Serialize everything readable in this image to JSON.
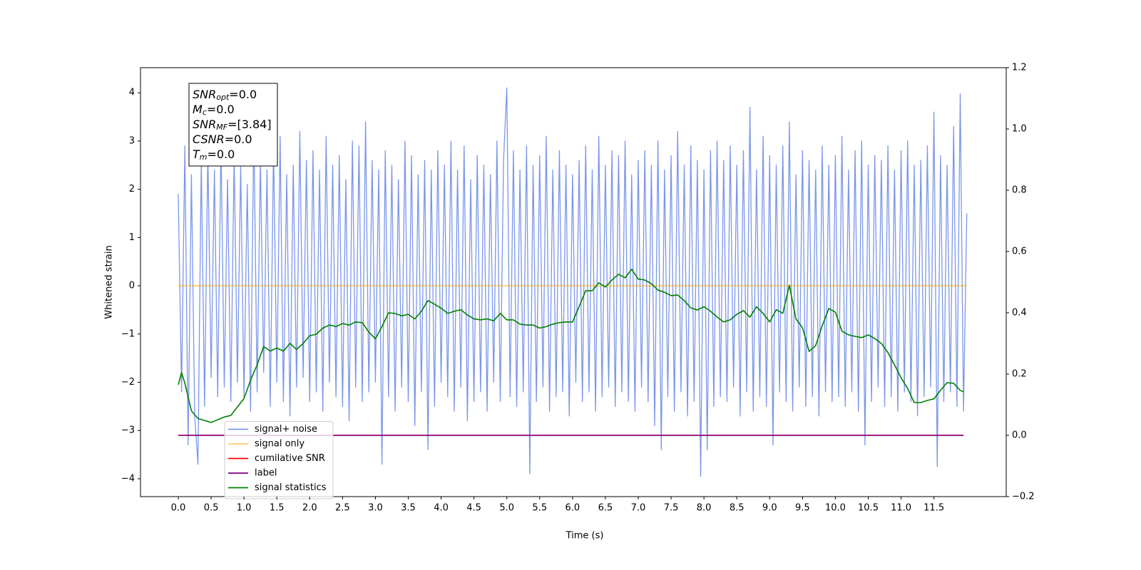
{
  "chart_data": {
    "type": "line",
    "xlabel": "Time (s)",
    "ylabel": "Whitened strain",
    "xlim": [
      -0.575,
      12.6
    ],
    "ylim": [
      -4.37,
      4.52
    ],
    "y2lim": [
      -0.2,
      1.2
    ],
    "xticks": [
      {
        "value": 0,
        "label": "0.0"
      },
      0.5,
      {
        "value": 1,
        "label": "1.0"
      },
      1.5,
      {
        "value": 2,
        "label": "2.0"
      },
      2.5,
      {
        "value": 3,
        "label": "3.0"
      },
      3.5,
      {
        "value": 4,
        "label": "4.0"
      },
      4.5,
      {
        "value": 5,
        "label": "5.0"
      },
      5.5,
      {
        "value": 6,
        "label": "6.0"
      },
      6.5,
      {
        "value": 7,
        "label": "7.0"
      },
      7.5,
      {
        "value": 8,
        "label": "8.0"
      },
      8.5,
      {
        "value": 9,
        "label": "9.0"
      },
      9.5,
      {
        "value": 10,
        "label": "10.0"
      },
      10.5,
      {
        "value": 11,
        "label": "11.0"
      },
      11.5
    ],
    "yticks": [
      {
        "value": -4,
        "label": "−4"
      },
      {
        "value": -3,
        "label": "−3"
      },
      {
        "value": -2,
        "label": "−2"
      },
      {
        "value": -1,
        "label": "−1"
      },
      0,
      1,
      2,
      3,
      4
    ],
    "y2ticks": [
      {
        "value": -0.2,
        "label": "−0.2"
      },
      {
        "value": 0,
        "label": "0.0"
      },
      0.2,
      0.4,
      0.6,
      0.8,
      {
        "value": 1,
        "label": "1.0"
      },
      1.2
    ],
    "legend": "lower left",
    "annotation": [
      {
        "symbol": "SNR",
        "subscript": "opt",
        "text": "=0.0"
      },
      {
        "symbol": "M",
        "subscript": "c",
        "text": "=0.0"
      },
      {
        "symbol": "SNR",
        "subscript": "MF",
        "text": "=[3.84]"
      },
      {
        "symbol": "CSNR",
        "text": "=0.0"
      },
      {
        "symbol": "T",
        "subscript": "m",
        "text": "=0.0"
      }
    ],
    "series": [
      {
        "name": "signal+ noise",
        "color": "rgba(65,105,225,0.7)",
        "x": [
          0,
          0.05,
          0.1,
          0.15,
          0.2,
          0.25,
          0.3,
          0.35,
          0.4,
          0.45,
          0.5,
          0.55,
          0.6,
          0.65,
          0.7,
          0.75,
          0.8,
          0.85,
          0.9,
          0.95,
          1,
          1.05,
          1.1,
          1.15,
          1.2,
          1.25,
          1.3,
          1.35,
          1.4,
          1.45,
          1.5,
          1.55,
          1.6,
          1.65,
          1.7,
          1.75,
          1.8,
          1.85,
          1.9,
          1.95,
          2,
          2.05,
          2.1,
          2.15,
          2.2,
          2.25,
          2.3,
          2.35,
          2.4,
          2.45,
          2.5,
          2.55,
          2.6,
          2.65,
          2.7,
          2.75,
          2.8,
          2.85,
          2.9,
          2.95,
          3,
          3.05,
          3.1,
          3.15,
          3.2,
          3.25,
          3.3,
          3.35,
          3.4,
          3.45,
          3.5,
          3.55,
          3.6,
          3.65,
          3.7,
          3.75,
          3.8,
          3.85,
          3.9,
          3.95,
          4,
          4.05,
          4.1,
          4.15,
          4.2,
          4.25,
          4.3,
          4.35,
          4.4,
          4.45,
          4.5,
          4.55,
          4.6,
          4.65,
          4.7,
          4.75,
          4.8,
          4.85,
          4.9,
          4.95,
          5,
          5.05,
          5.1,
          5.15,
          5.2,
          5.25,
          5.3,
          5.35,
          5.4,
          5.45,
          5.5,
          5.55,
          5.6,
          5.65,
          5.7,
          5.75,
          5.8,
          5.85,
          5.9,
          5.95,
          6,
          6.05,
          6.1,
          6.15,
          6.2,
          6.25,
          6.3,
          6.35,
          6.4,
          6.45,
          6.5,
          6.55,
          6.6,
          6.65,
          6.7,
          6.75,
          6.8,
          6.85,
          6.9,
          6.95,
          7,
          7.05,
          7.1,
          7.15,
          7.2,
          7.25,
          7.3,
          7.35,
          7.4,
          7.45,
          7.5,
          7.55,
          7.6,
          7.65,
          7.7,
          7.75,
          7.8,
          7.85,
          7.9,
          7.95,
          8,
          8.05,
          8.1,
          8.15,
          8.2,
          8.25,
          8.3,
          8.35,
          8.4,
          8.45,
          8.5,
          8.55,
          8.6,
          8.65,
          8.7,
          8.75,
          8.8,
          8.85,
          8.9,
          8.95,
          9,
          9.05,
          9.1,
          9.15,
          9.2,
          9.25,
          9.3,
          9.35,
          9.4,
          9.45,
          9.5,
          9.55,
          9.6,
          9.65,
          9.7,
          9.75,
          9.8,
          9.85,
          9.9,
          9.95,
          10,
          10.05,
          10.1,
          10.15,
          10.2,
          10.25,
          10.3,
          10.35,
          10.4,
          10.45,
          10.5,
          10.55,
          10.6,
          10.65,
          10.7,
          10.75,
          10.8,
          10.85,
          10.9,
          10.95,
          11,
          11.05,
          11.1,
          11.15,
          11.2,
          11.25,
          11.3,
          11.35,
          11.4,
          11.45,
          11.5,
          11.55,
          11.6,
          11.65,
          11.7,
          11.75,
          11.8,
          11.85,
          11.9,
          11.95,
          12
        ],
        "values": [
          1.9,
          -2.2,
          2.9,
          -3.3,
          2.3,
          -2.7,
          -3.7,
          2.6,
          -2.5,
          2.8,
          -1.9,
          2.4,
          -2.3,
          3.0,
          -2.1,
          2.2,
          -2.4,
          2.7,
          -2.0,
          2.5,
          -2.3,
          2.1,
          -2.6,
          3.3,
          -2.2,
          2.6,
          -1.8,
          2.4,
          -2.5,
          2.9,
          -2.0,
          3.1,
          -2.4,
          2.3,
          -2.7,
          2.5,
          -2.1,
          3.2,
          -1.9,
          2.6,
          -2.4,
          2.8,
          -2.2,
          2.4,
          -2.6,
          3.1,
          -2.0,
          2.5,
          -2.3,
          2.7,
          -2.5,
          2.2,
          -2.8,
          3.0,
          -2.1,
          2.9,
          -2.4,
          3.4,
          -2.2,
          2.6,
          -2.0,
          2.4,
          -3.7,
          2.8,
          -2.3,
          2.5,
          -2.6,
          2.2,
          -2.1,
          3.0,
          -2.4,
          2.7,
          -2.9,
          2.3,
          -2.2,
          2.6,
          -3.4,
          2.4,
          -2.5,
          2.8,
          -2.0,
          2.5,
          -2.3,
          3.0,
          -2.6,
          2.4,
          -2.1,
          2.9,
          -2.8,
          2.2,
          -2.4,
          2.7,
          -2.2,
          2.5,
          -2.6,
          2.3,
          -2.0,
          3.0,
          -2.4,
          2.6,
          4.1,
          -2.3,
          2.8,
          -2.5,
          2.4,
          -2.2,
          2.9,
          -3.9,
          2.5,
          -2.4,
          2.7,
          -2.1,
          3.1,
          -2.6,
          2.4,
          -2.3,
          2.8,
          -2.2,
          2.5,
          -2.7,
          2.3,
          -2.0,
          2.6,
          -2.4,
          2.9,
          -2.2,
          2.4,
          -2.6,
          3.1,
          -2.3,
          2.5,
          -2.1,
          2.8,
          -2.5,
          2.7,
          -2.2,
          3.0,
          -2.4,
          2.3,
          -2.6,
          2.6,
          -2.1,
          2.8,
          -2.4,
          2.5,
          -2.9,
          3.0,
          -3.4,
          2.4,
          -2.3,
          2.7,
          -2.6,
          3.2,
          -2.2,
          2.5,
          -2.7,
          2.9,
          -2.4,
          2.6,
          -3.95,
          2.4,
          -3.4,
          2.8,
          -2.5,
          3.0,
          -2.3,
          2.6,
          -2.4,
          2.9,
          -2.1,
          2.5,
          -2.7,
          2.8,
          -2.2,
          3.7,
          -2.6,
          2.4,
          -2.3,
          3.1,
          -2.5,
          2.7,
          -3.3,
          2.5,
          -2.2,
          2.9,
          -2.4,
          3.4,
          -2.6,
          2.3,
          -2.1,
          2.8,
          -2.5,
          2.6,
          -2.3,
          2.4,
          -2.7,
          2.9,
          -2.2,
          2.5,
          -2.4,
          2.7,
          -2.3,
          3.1,
          -2.5,
          2.4,
          -2.2,
          2.8,
          -2.6,
          3.0,
          -3.3,
          2.5,
          -2.4,
          2.7,
          -2.1,
          2.6,
          -2.5,
          2.9,
          -2.3,
          2.4,
          -2.6,
          2.8,
          -2.2,
          3.0,
          -2.4,
          2.5,
          -2.7,
          2.6,
          -2.3,
          2.9,
          -2.1,
          3.6,
          -3.75,
          2.7,
          -2.4,
          2.5,
          -2.2,
          3.3,
          -2.5,
          3.98,
          -2.6,
          1.5
        ]
      },
      {
        "name": "signal only",
        "color": "rgba(255,165,0,0.6)",
        "x": [
          0,
          12
        ],
        "values": [
          0,
          0
        ]
      },
      {
        "name": "cumilative SNR",
        "color": "#ff0000",
        "axis": "y2",
        "x": [
          0,
          11.95
        ],
        "values": [
          0,
          0
        ]
      },
      {
        "name": "label",
        "color": "#800080",
        "axis": "y2",
        "x": [
          0,
          11.95
        ],
        "values": [
          0,
          0
        ]
      },
      {
        "name": "signal statistics",
        "color": "#008000",
        "axis": "y2",
        "x": [
          0,
          0.05,
          0.1,
          0.2,
          0.3,
          0.5,
          0.7,
          0.8,
          1,
          1.1,
          1.2,
          1.3,
          1.4,
          1.5,
          1.6,
          1.7,
          1.8,
          1.9,
          2,
          2.1,
          2.2,
          2.3,
          2.4,
          2.5,
          2.6,
          2.7,
          2.8,
          2.9,
          3,
          3.1,
          3.2,
          3.3,
          3.4,
          3.5,
          3.6,
          3.7,
          3.8,
          3.9,
          4,
          4.1,
          4.2,
          4.3,
          4.4,
          4.5,
          4.6,
          4.7,
          4.8,
          4.9,
          5,
          5.1,
          5.2,
          5.3,
          5.4,
          5.5,
          5.6,
          5.7,
          5.8,
          5.9,
          6,
          6.1,
          6.2,
          6.3,
          6.4,
          6.5,
          6.6,
          6.7,
          6.8,
          6.9,
          7,
          7.1,
          7.2,
          7.3,
          7.4,
          7.5,
          7.6,
          7.7,
          7.8,
          7.9,
          8,
          8.1,
          8.2,
          8.3,
          8.4,
          8.5,
          8.6,
          8.7,
          8.8,
          8.9,
          9,
          9.1,
          9.2,
          9.3,
          9.4,
          9.5,
          9.6,
          9.7,
          9.8,
          9.9,
          10,
          10.1,
          10.2,
          10.3,
          10.4,
          10.5,
          10.6,
          10.7,
          10.8,
          10.9,
          11,
          11.1,
          11.2,
          11.3,
          11.4,
          11.5,
          11.6,
          11.7,
          11.8,
          11.9,
          11.95
        ],
        "values": [
          0.165,
          0.205,
          0.17,
          0.08,
          0.055,
          0.042,
          0.06,
          0.065,
          0.12,
          0.18,
          0.23,
          0.29,
          0.275,
          0.285,
          0.275,
          0.3,
          0.28,
          0.3,
          0.325,
          0.33,
          0.35,
          0.36,
          0.355,
          0.365,
          0.36,
          0.37,
          0.368,
          0.337,
          0.315,
          0.355,
          0.4,
          0.398,
          0.39,
          0.395,
          0.38,
          0.405,
          0.44,
          0.428,
          0.415,
          0.398,
          0.405,
          0.41,
          0.393,
          0.38,
          0.377,
          0.38,
          0.374,
          0.398,
          0.377,
          0.377,
          0.363,
          0.36,
          0.36,
          0.35,
          0.355,
          0.363,
          0.368,
          0.37,
          0.37,
          0.42,
          0.472,
          0.472,
          0.498,
          0.484,
          0.507,
          0.526,
          0.514,
          0.542,
          0.51,
          0.507,
          0.495,
          0.474,
          0.467,
          0.456,
          0.458,
          0.44,
          0.416,
          0.409,
          0.42,
          0.405,
          0.386,
          0.37,
          0.377,
          0.395,
          0.407,
          0.386,
          0.42,
          0.398,
          0.37,
          0.41,
          0.398,
          0.49,
          0.38,
          0.351,
          0.274,
          0.293,
          0.358,
          0.414,
          0.402,
          0.34,
          0.328,
          0.323,
          0.319,
          0.328,
          0.316,
          0.3,
          0.27,
          0.23,
          0.188,
          0.153,
          0.107,
          0.107,
          0.114,
          0.119,
          0.147,
          0.172,
          0.17,
          0.147,
          0.142
        ]
      }
    ]
  }
}
